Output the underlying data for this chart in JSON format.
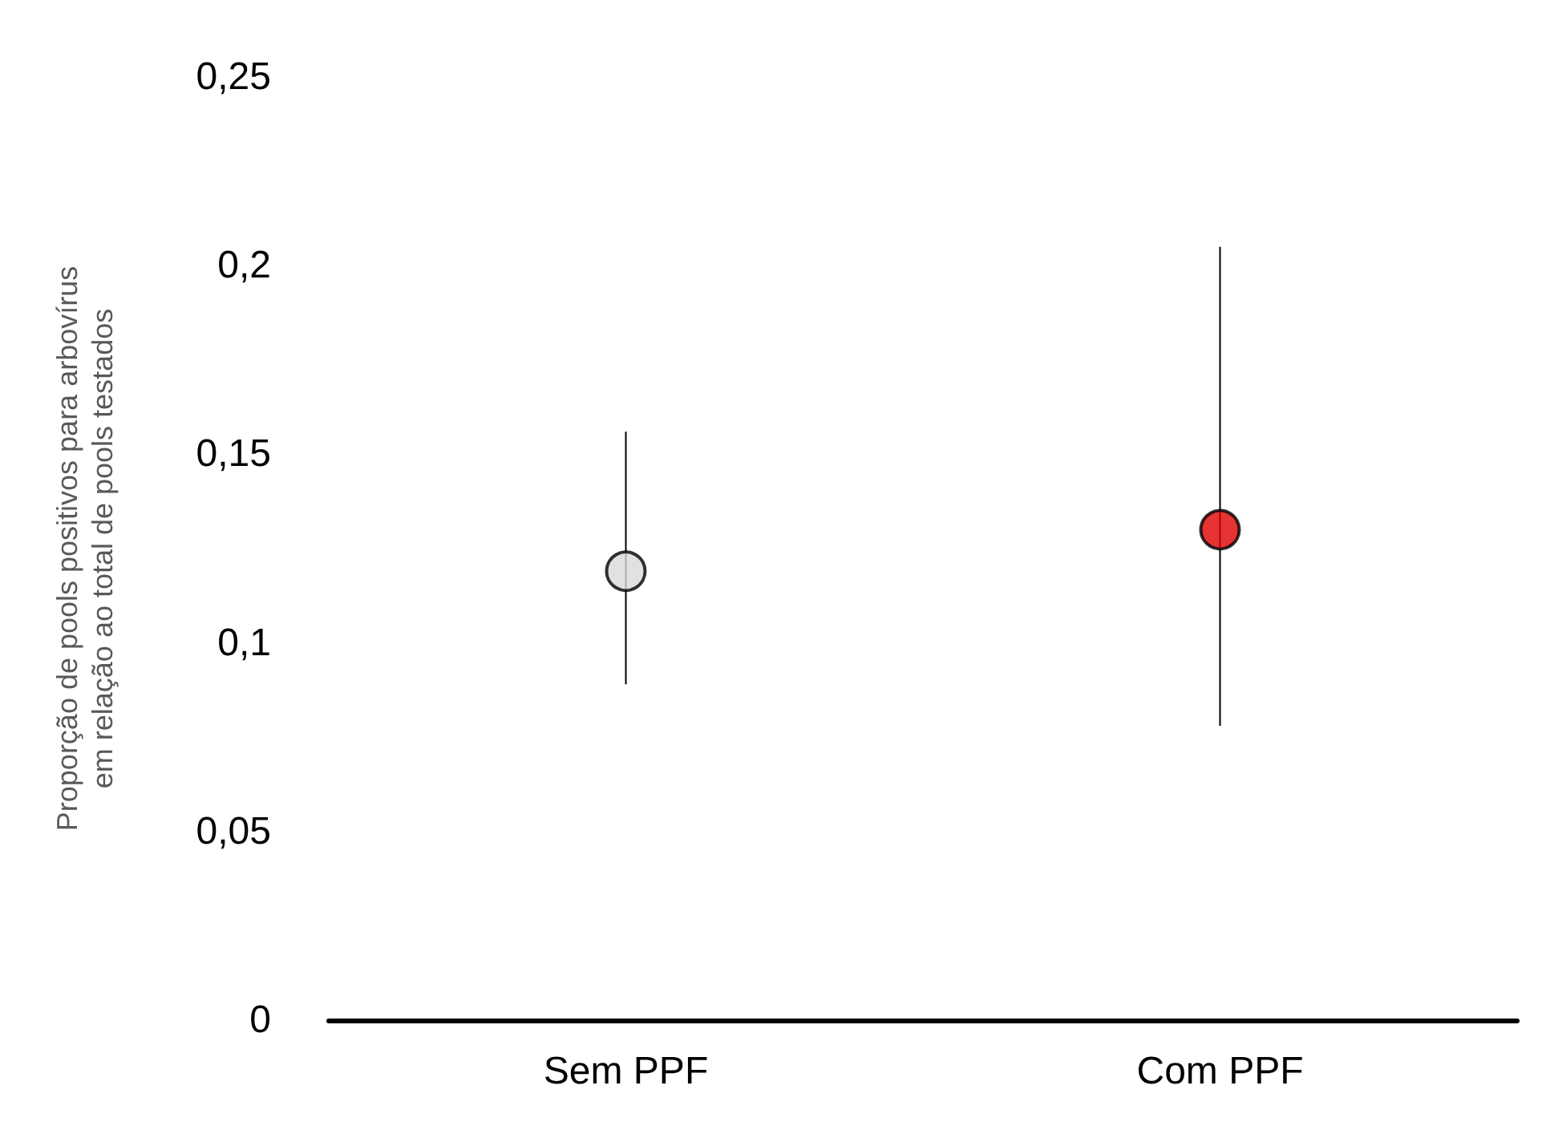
{
  "chart_data": {
    "type": "scatter",
    "ylabel": "Proporção de pools positivos para arbovírus\nem relação ao total de pools testados",
    "categories": [
      "Sem PPF",
      "Com PPF"
    ],
    "values": [
      0.119,
      0.13
    ],
    "errors": [
      [
        0.089,
        0.156
      ],
      [
        0.078,
        0.205
      ]
    ],
    "colors": [
      "#d9d9d9",
      "#e00000"
    ],
    "ylim": [
      0,
      0.25
    ],
    "yticks": [
      {
        "value": 0,
        "label": "0"
      },
      {
        "value": 0.05,
        "label": "0,05"
      },
      {
        "value": 0.1,
        "label": "0,1"
      },
      {
        "value": 0.15,
        "label": "0,15"
      },
      {
        "value": 0.2,
        "label": "0,2"
      },
      {
        "value": 0.25,
        "label": "0,25"
      }
    ],
    "grid": false,
    "marker": "circle"
  }
}
